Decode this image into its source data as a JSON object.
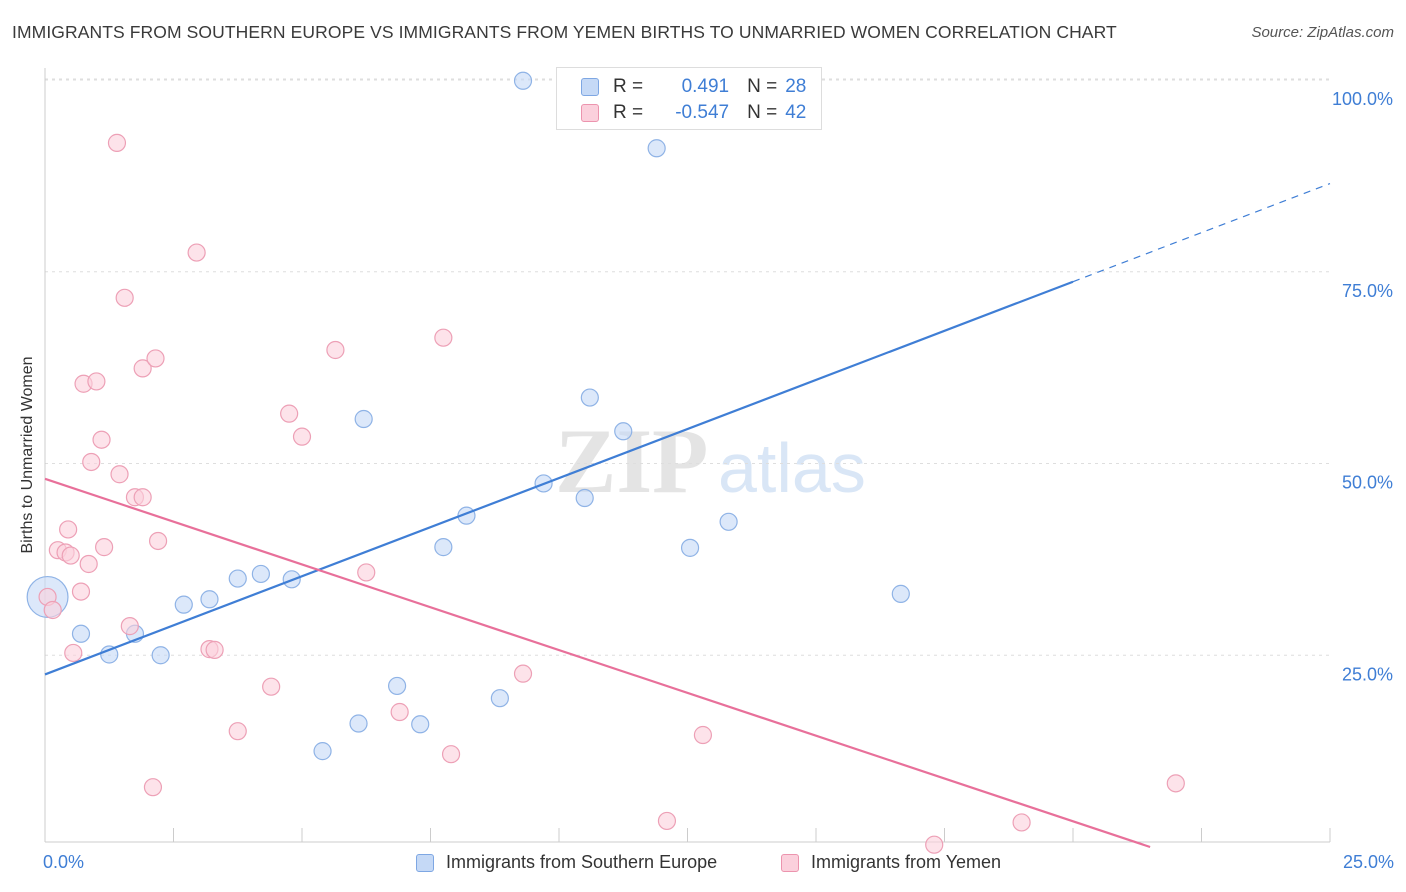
{
  "title": "IMMIGRANTS FROM SOUTHERN EUROPE VS IMMIGRANTS FROM YEMEN BIRTHS TO UNMARRIED WOMEN CORRELATION CHART",
  "source": "Source: ZipAtlas.com",
  "watermark": {
    "zip": "ZIP",
    "atlas": "atlas"
  },
  "colors": {
    "blue": "#3f7ed5",
    "pink": "#e8709a",
    "blue_fill": "#c5d9f6",
    "pink_fill": "#fbd0dc"
  },
  "stats": {
    "blue": {
      "r_label": "R =",
      "r_value": "0.491",
      "n_label": "N =",
      "n_value": "28"
    },
    "pink": {
      "r_label": "R =",
      "r_value": "-0.547",
      "n_label": "N =",
      "n_value": "42"
    }
  },
  "chart_data": {
    "type": "scatter",
    "title": "IMMIGRANTS FROM SOUTHERN EUROPE VS IMMIGRANTS FROM YEMEN BIRTHS TO UNMARRIED WOMEN CORRELATION CHART",
    "xlabel": "",
    "ylabel": "Births to Unmarried Women",
    "xlim": [
      0,
      25
    ],
    "ylim": [
      0,
      104
    ],
    "x_tick_labels": [
      "0.0%",
      "25.0%"
    ],
    "y_ticks": [
      25,
      50,
      75,
      100
    ],
    "y_tick_labels": [
      "25.0%",
      "50.0%",
      "75.0%",
      "100.0%"
    ],
    "legend": [
      "Immigrants from Southern Europe",
      "Immigrants from Yemen"
    ],
    "series": [
      {
        "name": "Immigrants from Southern Europe",
        "color": "#3f7ed5",
        "points": [
          [
            0.05,
            32.6,
            2.4
          ],
          [
            0.7,
            27.8,
            1
          ],
          [
            1.25,
            25.1,
            1
          ],
          [
            1.75,
            27.8,
            1
          ],
          [
            2.25,
            25.0,
            1
          ],
          [
            2.7,
            31.6,
            1
          ],
          [
            3.2,
            32.3,
            1
          ],
          [
            3.75,
            35.0,
            1
          ],
          [
            4.2,
            35.6,
            1
          ],
          [
            4.8,
            34.9,
            1
          ],
          [
            5.4,
            12.5,
            1
          ],
          [
            6.1,
            16.1,
            1
          ],
          [
            6.2,
            55.8,
            1
          ],
          [
            6.85,
            21.0,
            1
          ],
          [
            7.3,
            16.0,
            1
          ],
          [
            7.75,
            39.1,
            1
          ],
          [
            8.2,
            43.2,
            1
          ],
          [
            8.85,
            19.4,
            1
          ],
          [
            9.3,
            99.9,
            1
          ],
          [
            9.7,
            47.4,
            1
          ],
          [
            10.5,
            45.5,
            1
          ],
          [
            10.6,
            58.6,
            1
          ],
          [
            11.25,
            54.2,
            1
          ],
          [
            11.9,
            91.1,
            1
          ],
          [
            12.55,
            39.0,
            1
          ],
          [
            13.3,
            42.4,
            1
          ],
          [
            13.9,
            99.9,
            1
          ],
          [
            16.65,
            33.0,
            1
          ]
        ],
        "trend": {
          "x0": 0,
          "y0": 22.5,
          "x1": 20,
          "y1": 73.7,
          "dash_to_x": 25,
          "dash_to_y": 86.5
        }
      },
      {
        "name": "Immigrants from Yemen",
        "color": "#e8709a",
        "points": [
          [
            0.05,
            32.6,
            1
          ],
          [
            0.15,
            30.9,
            1
          ],
          [
            0.25,
            38.7,
            1
          ],
          [
            0.4,
            38.4,
            1
          ],
          [
            0.45,
            41.4,
            1
          ],
          [
            0.5,
            38.0,
            1
          ],
          [
            0.55,
            25.3,
            1
          ],
          [
            0.7,
            33.3,
            1
          ],
          [
            0.75,
            60.4,
            1
          ],
          [
            0.85,
            36.9,
            1
          ],
          [
            0.9,
            50.2,
            1
          ],
          [
            1.0,
            60.7,
            1
          ],
          [
            1.1,
            53.1,
            1
          ],
          [
            1.15,
            39.1,
            1
          ],
          [
            1.4,
            91.8,
            1
          ],
          [
            1.45,
            48.6,
            1
          ],
          [
            1.55,
            71.6,
            1
          ],
          [
            1.65,
            28.8,
            1
          ],
          [
            1.75,
            45.6,
            1
          ],
          [
            1.9,
            45.6,
            1
          ],
          [
            1.9,
            62.4,
            1
          ],
          [
            2.1,
            7.8,
            1
          ],
          [
            2.15,
            63.7,
            1
          ],
          [
            2.2,
            39.9,
            1
          ],
          [
            2.95,
            77.5,
            1
          ],
          [
            3.2,
            25.8,
            1
          ],
          [
            3.3,
            25.7,
            1
          ],
          [
            3.75,
            15.1,
            1
          ],
          [
            4.4,
            20.9,
            1
          ],
          [
            4.75,
            56.5,
            1
          ],
          [
            5.0,
            53.5,
            1
          ],
          [
            5.65,
            64.8,
            1
          ],
          [
            6.25,
            35.8,
            1
          ],
          [
            6.9,
            17.6,
            1
          ],
          [
            7.75,
            66.4,
            1
          ],
          [
            7.9,
            12.1,
            1
          ],
          [
            9.3,
            22.6,
            1
          ],
          [
            12.1,
            3.4,
            1
          ],
          [
            12.8,
            14.6,
            1
          ],
          [
            17.3,
            0.3,
            1
          ],
          [
            19.0,
            3.2,
            1
          ],
          [
            22.0,
            8.3,
            1
          ]
        ],
        "trend": {
          "x0": 0,
          "y0": 48.0,
          "x1": 21.5,
          "y1": 0
        }
      }
    ]
  },
  "legend_bottom": {
    "blue_label": "Immigrants from Southern Europe",
    "pink_label": "Immigrants from Yemen"
  }
}
